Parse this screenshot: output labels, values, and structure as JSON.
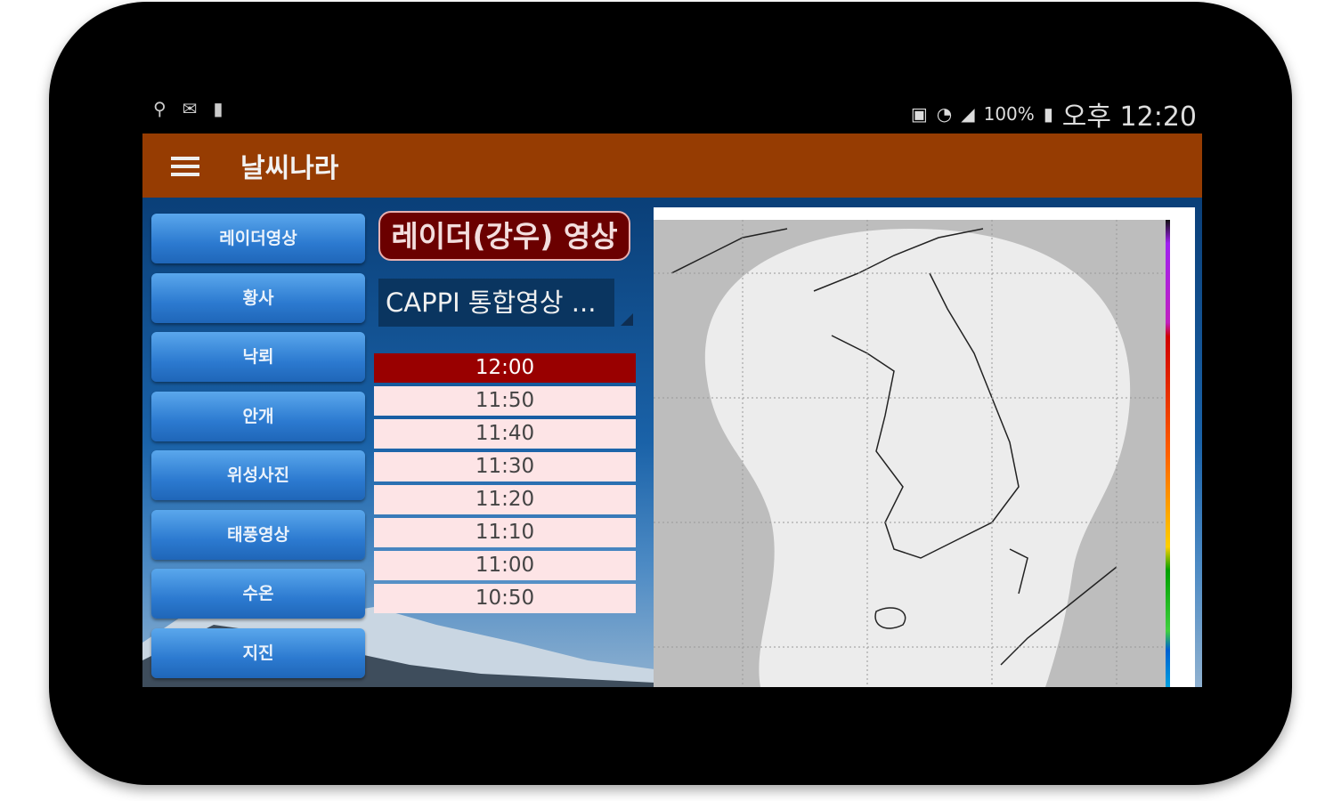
{
  "status_bar": {
    "left_icons": [
      "usb-icon",
      "voicemail-icon",
      "battery-saver-icon"
    ],
    "battery": "100%",
    "time": "오후 12:20"
  },
  "app_bar": {
    "title": "날씨나라"
  },
  "nav": [
    {
      "label": "레이더영상"
    },
    {
      "label": "황사"
    },
    {
      "label": "낙뢰"
    },
    {
      "label": "안개"
    },
    {
      "label": "위성사진"
    },
    {
      "label": "태풍영상"
    },
    {
      "label": "수온"
    },
    {
      "label": "지진"
    }
  ],
  "main": {
    "title_button": "레이더(강우) 영상",
    "dropdown_value": "CAPPI 통합영상 ...",
    "times": [
      {
        "label": "12:00",
        "selected": true
      },
      {
        "label": "11:50"
      },
      {
        "label": "11:40"
      },
      {
        "label": "11:30"
      },
      {
        "label": "11:20"
      },
      {
        "label": "11:10"
      },
      {
        "label": "11:00"
      },
      {
        "label": "10:50"
      }
    ]
  },
  "colors": {
    "app_bar": "#963c02",
    "selected_time": "#990000",
    "time_row": "#fde4e6",
    "nav_button": "#2c7ad0"
  }
}
